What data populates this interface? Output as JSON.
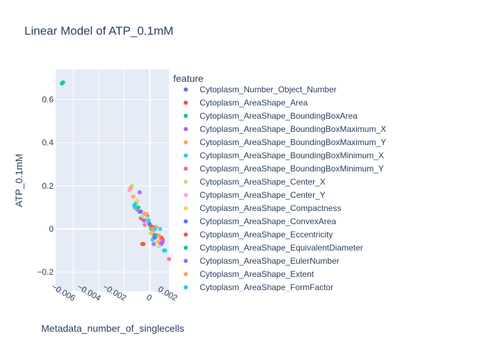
{
  "chart_data": {
    "type": "scatter",
    "title": "Linear Model of ATP_0.1mM",
    "xlabel": "Metadata_number_of_singlecells",
    "ylabel": "ATP_0.1mM",
    "xlim": [
      -0.00738,
      0.0015
    ],
    "ylim": [
      -0.29,
      0.74
    ],
    "x_ticks": [
      -0.006,
      -0.004,
      -0.002,
      0,
      0.002
    ],
    "x_tick_labels": [
      "−0.006",
      "−0.004",
      "−0.002",
      "0",
      "0.002"
    ],
    "y_ticks": [
      -0.2,
      0,
      0.2,
      0.4,
      0.6
    ],
    "y_tick_labels": [
      "−0.2",
      "0",
      "0.2",
      "0.4",
      "0.6"
    ],
    "grid": true,
    "legend_title": "feature",
    "legend_position": "right",
    "series": [
      {
        "name": "Cytoplasm_Number_Object_Number",
        "color": "#636efa",
        "x": [
          -0.0001,
          0.0004,
          -0.0008,
          0.0007
        ],
        "y": [
          0.03,
          -0.03,
          0.08,
          -0.06
        ]
      },
      {
        "name": "Cytoplasm_AreaShape_Area",
        "color": "#EF553B",
        "x": [
          -0.0007,
          0.0002,
          -0.0005,
          0.001
        ],
        "y": [
          0.05,
          -0.02,
          -0.07,
          -0.05
        ]
      },
      {
        "name": "Cytoplasm_AreaShape_BoundingBoxArea",
        "color": "#00cc96",
        "x": [
          -0.0069,
          -0.0012,
          -0.0004,
          0.0001
        ],
        "y": [
          0.675,
          0.11,
          0.04,
          -0.02
        ]
      },
      {
        "name": "Cytoplasm_AreaShape_BoundingBoxMaximum_X",
        "color": "#ab63fa",
        "x": [
          -0.0008,
          0.0003,
          -0.0002,
          0.0009
        ],
        "y": [
          0.17,
          -0.04,
          0.06,
          -0.07
        ]
      },
      {
        "name": "Cytoplasm_AreaShape_BoundingBoxMaximum_Y",
        "color": "#FFA15A",
        "x": [
          -0.0013,
          0.0018,
          0.0005,
          -0.0003
        ],
        "y": [
          0.15,
          -0.19,
          0.01,
          0.07
        ]
      },
      {
        "name": "Cytoplasm_AreaShape_BoundingBoxMinimum_X",
        "color": "#19d3f3",
        "x": [
          0.0011,
          0.0008,
          -0.0011,
          0.0002
        ],
        "y": [
          -0.1,
          0.0,
          0.12,
          -0.05
        ]
      },
      {
        "name": "Cytoplasm_AreaShape_BoundingBoxMinimum_Y",
        "color": "#FF6692",
        "x": [
          0.0015,
          -0.0004,
          0.0006,
          -0.001
        ],
        "y": [
          -0.14,
          0.02,
          -0.03,
          0.09
        ]
      },
      {
        "name": "Cytoplasm_AreaShape_Center_X",
        "color": "#B6E880",
        "x": [
          -0.0014,
          0.0,
          0.0007,
          -0.0006
        ],
        "y": [
          0.2,
          0.01,
          -0.08,
          0.06
        ]
      },
      {
        "name": "Cytoplasm_AreaShape_Center_Y",
        "color": "#FF97FF",
        "x": [
          -0.0016,
          0.0003,
          -0.0003,
          0.0008
        ],
        "y": [
          0.18,
          -0.01,
          0.03,
          -0.05
        ]
      },
      {
        "name": "Cytoplasm_AreaShape_Compactness",
        "color": "#FECB52",
        "x": [
          -0.001,
          0.0006,
          0.0001,
          -0.0002
        ],
        "y": [
          0.13,
          -0.06,
          -0.02,
          0.05
        ]
      },
      {
        "name": "Cytoplasm_AreaShape_ConvexArea",
        "color": "#636efa",
        "x": [
          0.002,
          -0.0007,
          0.0004,
          0.0
        ],
        "y": [
          -0.23,
          0.08,
          -0.04,
          0.02
        ]
      },
      {
        "name": "Cytoplasm_AreaShape_Eccentricity",
        "color": "#EF553B",
        "x": [
          -0.0006,
          0.0009,
          0.0002,
          0.0016
        ],
        "y": [
          -0.07,
          -0.04,
          0.01,
          -0.18
        ]
      },
      {
        "name": "Cytoplasm_AreaShape_EquivalentDiameter",
        "color": "#00cc96",
        "x": [
          -0.0068,
          -0.0009,
          0.0005,
          0.0001
        ],
        "y": [
          0.68,
          0.1,
          -0.03,
          0.0
        ]
      },
      {
        "name": "Cytoplasm_AreaShape_EulerNumber",
        "color": "#ab63fa",
        "x": [
          0.0021,
          -0.0005,
          0.0003,
          0.001
        ],
        "y": [
          -0.225,
          0.04,
          -0.07,
          -0.06
        ]
      },
      {
        "name": "Cytoplasm_AreaShape_Extent",
        "color": "#FFA15A",
        "x": [
          -0.0015,
          0.0002,
          -0.0004,
          0.0007
        ],
        "y": [
          0.19,
          0.0,
          0.07,
          -0.03
        ]
      },
      {
        "name": "Cytoplasm_AreaShape_FormFactor",
        "color": "#19d3f3",
        "x": [
          0.0012,
          -0.0012,
          0.0004,
          -0.0001
        ],
        "y": [
          -0.1,
          0.1,
          0.0,
          0.04
        ]
      }
    ]
  }
}
